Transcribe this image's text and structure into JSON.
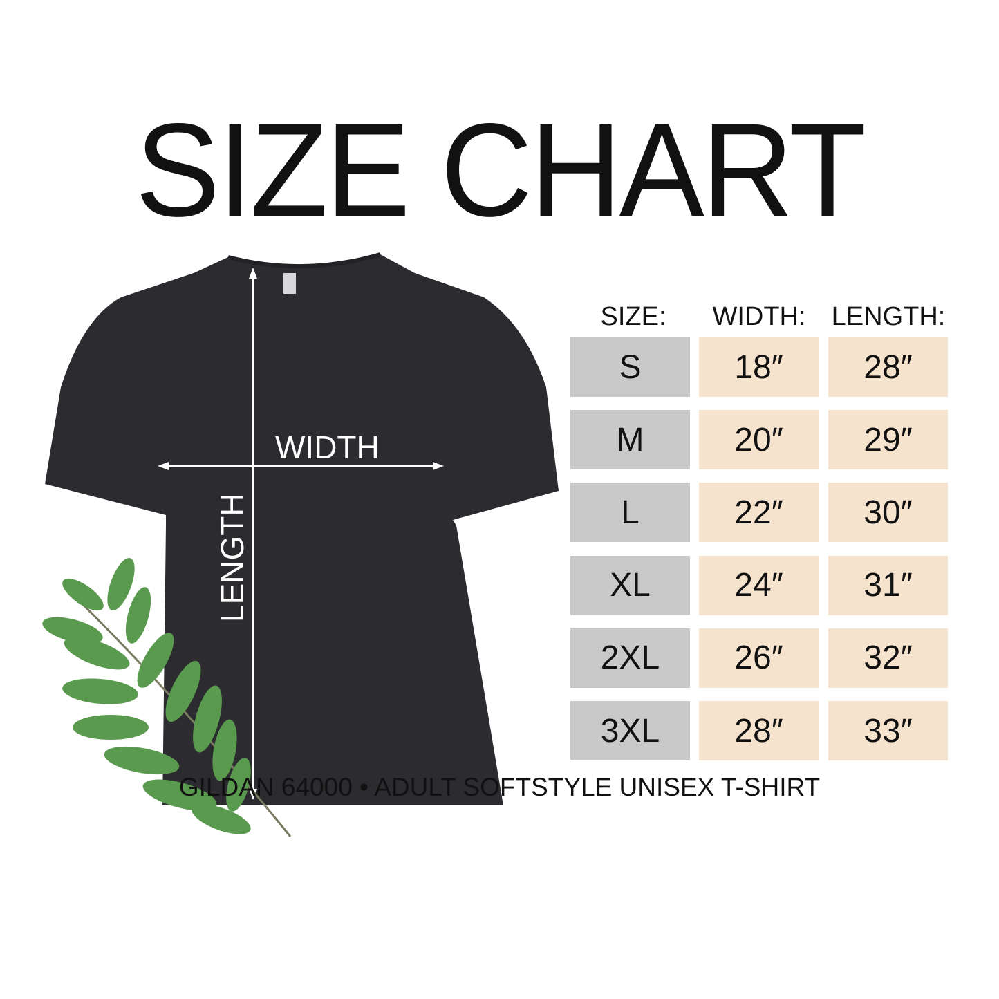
{
  "title": "SIZE CHART",
  "shirt_labels": {
    "width": "WIDTH",
    "length": "LENGTH"
  },
  "footer": "GILDAN 64000 • ADULT SOFTSTYLE UNISEX T-SHIRT",
  "colors": {
    "size_cell": "#c9c9c9",
    "value_cell": "#f6e3ce",
    "shirt": "#2b2b30",
    "leaf": "#5a9a4e"
  },
  "chart_data": {
    "type": "table",
    "title": "SIZE CHART",
    "columns": [
      "SIZE:",
      "WIDTH:",
      "LENGTH:"
    ],
    "rows": [
      [
        "S",
        "18″",
        "28″"
      ],
      [
        "M",
        "20″",
        "29″"
      ],
      [
        "L",
        "22″",
        "30″"
      ],
      [
        "XL",
        "24″",
        "31″"
      ],
      [
        "2XL",
        "26″",
        "32″"
      ],
      [
        "3XL",
        "28″",
        "33″"
      ]
    ]
  }
}
